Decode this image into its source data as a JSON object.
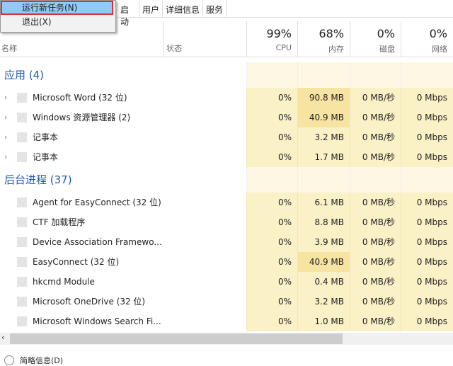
{
  "menu": {
    "items": [
      "运行新任务(N)",
      "退出(X)"
    ]
  },
  "tabs": [
    "启动",
    "用户",
    "详细信息",
    "服务"
  ],
  "header": {
    "name": "名称",
    "status": "状态",
    "cpu_pct": "99%",
    "cpu": "CPU",
    "mem_pct": "68%",
    "mem": "内存",
    "disk_pct": "0%",
    "disk": "磁盘",
    "net_pct": "0%",
    "net": "网络"
  },
  "groups": [
    {
      "title": "应用 (4)",
      "rows": [
        {
          "name": "Microsoft Word (32 位)",
          "cpu": "0%",
          "mem": "90.8 MB",
          "disk": "0 MB/秒",
          "net": "0 Mbps"
        },
        {
          "name": "Windows 资源管理器 (2)",
          "cpu": "0%",
          "mem": "40.9 MB",
          "disk": "0 MB/秒",
          "net": "0 Mbps"
        },
        {
          "name": "记事本",
          "cpu": "0%",
          "mem": "3.2 MB",
          "disk": "0 MB/秒",
          "net": "0 Mbps"
        },
        {
          "name": "记事本",
          "cpu": "0%",
          "mem": "1.7 MB",
          "disk": "0 MB/秒",
          "net": "0 Mbps"
        }
      ]
    },
    {
      "title": "后台进程 (37)",
      "rows": [
        {
          "name": "Agent for EasyConnect (32 位)",
          "cpu": "0%",
          "mem": "6.1 MB",
          "disk": "0 MB/秒",
          "net": "0 Mbps"
        },
        {
          "name": "CTF 加载程序",
          "cpu": "0%",
          "mem": "8.8 MB",
          "disk": "0 MB/秒",
          "net": "0 Mbps"
        },
        {
          "name": "Device Association Framewo...",
          "cpu": "0%",
          "mem": "3.9 MB",
          "disk": "0 MB/秒",
          "net": "0 Mbps"
        },
        {
          "name": "EasyConnect (32 位)",
          "cpu": "0%",
          "mem": "40.9 MB",
          "disk": "0 MB/秒",
          "net": "0 Mbps"
        },
        {
          "name": "hkcmd Module",
          "cpu": "0%",
          "mem": "0.4 MB",
          "disk": "0 MB/秒",
          "net": "0 Mbps"
        },
        {
          "name": "Microsoft OneDrive (32 位)",
          "cpu": "0%",
          "mem": "3.2 MB",
          "disk": "0 MB/秒",
          "net": "0 Mbps"
        },
        {
          "name": "Microsoft Windows Search Fi...",
          "cpu": "0%",
          "mem": "1.0 MB",
          "disk": "0 MB/秒",
          "net": "0 Mbps"
        }
      ]
    }
  ],
  "footer": {
    "label": "简略信息(D)"
  },
  "colors": {
    "group": "#1e5aa8",
    "cell": "#fbf1c6",
    "cell_hot": "#f8e4a2",
    "group_cell": "#fdf7e4"
  }
}
